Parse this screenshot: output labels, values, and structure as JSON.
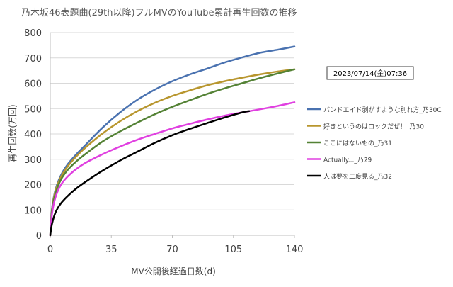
{
  "chart_data": {
    "type": "line",
    "title": "乃木坂46表題曲(29th以降)フルMVのYouTube累計再生回数の推移",
    "xlabel": "MV公開後経過日数(d)",
    "ylabel": "再生回数(万回)",
    "annotation": "2023/07/14(金)07:36",
    "xlim": [
      0,
      140
    ],
    "ylim": [
      0,
      800
    ],
    "xticks": [
      0,
      35,
      70,
      105,
      140
    ],
    "xtick_labels": [
      "0",
      "35",
      "70",
      "105",
      "140"
    ],
    "yticks": [
      0,
      100,
      200,
      300,
      400,
      500,
      600,
      700,
      800
    ],
    "ytick_labels": [
      "0",
      "100",
      "200",
      "300",
      "400",
      "500",
      "600",
      "700",
      "800"
    ],
    "grid": "horizontal",
    "legend_position": "right",
    "series": [
      {
        "name": "バンドエイド剥がすような別れ方_乃30C",
        "color": "#4a72b0",
        "x": [
          0,
          1,
          3,
          6,
          10,
          15,
          20,
          30,
          40,
          50,
          60,
          70,
          80,
          90,
          100,
          110,
          120,
          130,
          140
        ],
        "y": [
          0,
          105,
          180,
          235,
          280,
          320,
          355,
          425,
          485,
          535,
          575,
          608,
          635,
          658,
          682,
          702,
          720,
          732,
          745
        ]
      },
      {
        "name": "好きというのはロックだぜ！_乃30",
        "color": "#b8962e",
        "x": [
          0,
          1,
          3,
          6,
          10,
          15,
          20,
          30,
          40,
          50,
          60,
          70,
          80,
          90,
          100,
          110,
          120,
          130,
          140
        ],
        "y": [
          0,
          100,
          175,
          228,
          272,
          312,
          345,
          402,
          450,
          490,
          523,
          550,
          572,
          592,
          608,
          622,
          635,
          646,
          655
        ]
      },
      {
        "name": "ここにはないもの_乃31",
        "color": "#548235",
        "x": [
          0,
          1,
          3,
          6,
          10,
          15,
          20,
          30,
          40,
          50,
          60,
          70,
          80,
          90,
          100,
          110,
          120,
          130,
          140
        ],
        "y": [
          0,
          95,
          165,
          218,
          258,
          292,
          320,
          370,
          410,
          445,
          478,
          507,
          533,
          558,
          580,
          600,
          620,
          638,
          655
        ]
      },
      {
        "name": "Actually..._乃29",
        "color": "#e040e0",
        "x": [
          0,
          1,
          3,
          6,
          10,
          15,
          20,
          30,
          40,
          50,
          60,
          70,
          80,
          90,
          100,
          110,
          120,
          130,
          140
        ],
        "y": [
          0,
          85,
          150,
          198,
          232,
          262,
          285,
          320,
          350,
          377,
          400,
          422,
          440,
          457,
          472,
          485,
          497,
          510,
          525
        ]
      },
      {
        "name": "人は夢を二度見る_乃32",
        "color": "#000000",
        "x": [
          0,
          1,
          3,
          6,
          10,
          15,
          20,
          30,
          40,
          50,
          60,
          70,
          80,
          90,
          100,
          110,
          114
        ],
        "y": [
          0,
          45,
          90,
          125,
          155,
          185,
          210,
          255,
          295,
          330,
          365,
          395,
          420,
          443,
          465,
          485,
          490
        ]
      }
    ]
  }
}
